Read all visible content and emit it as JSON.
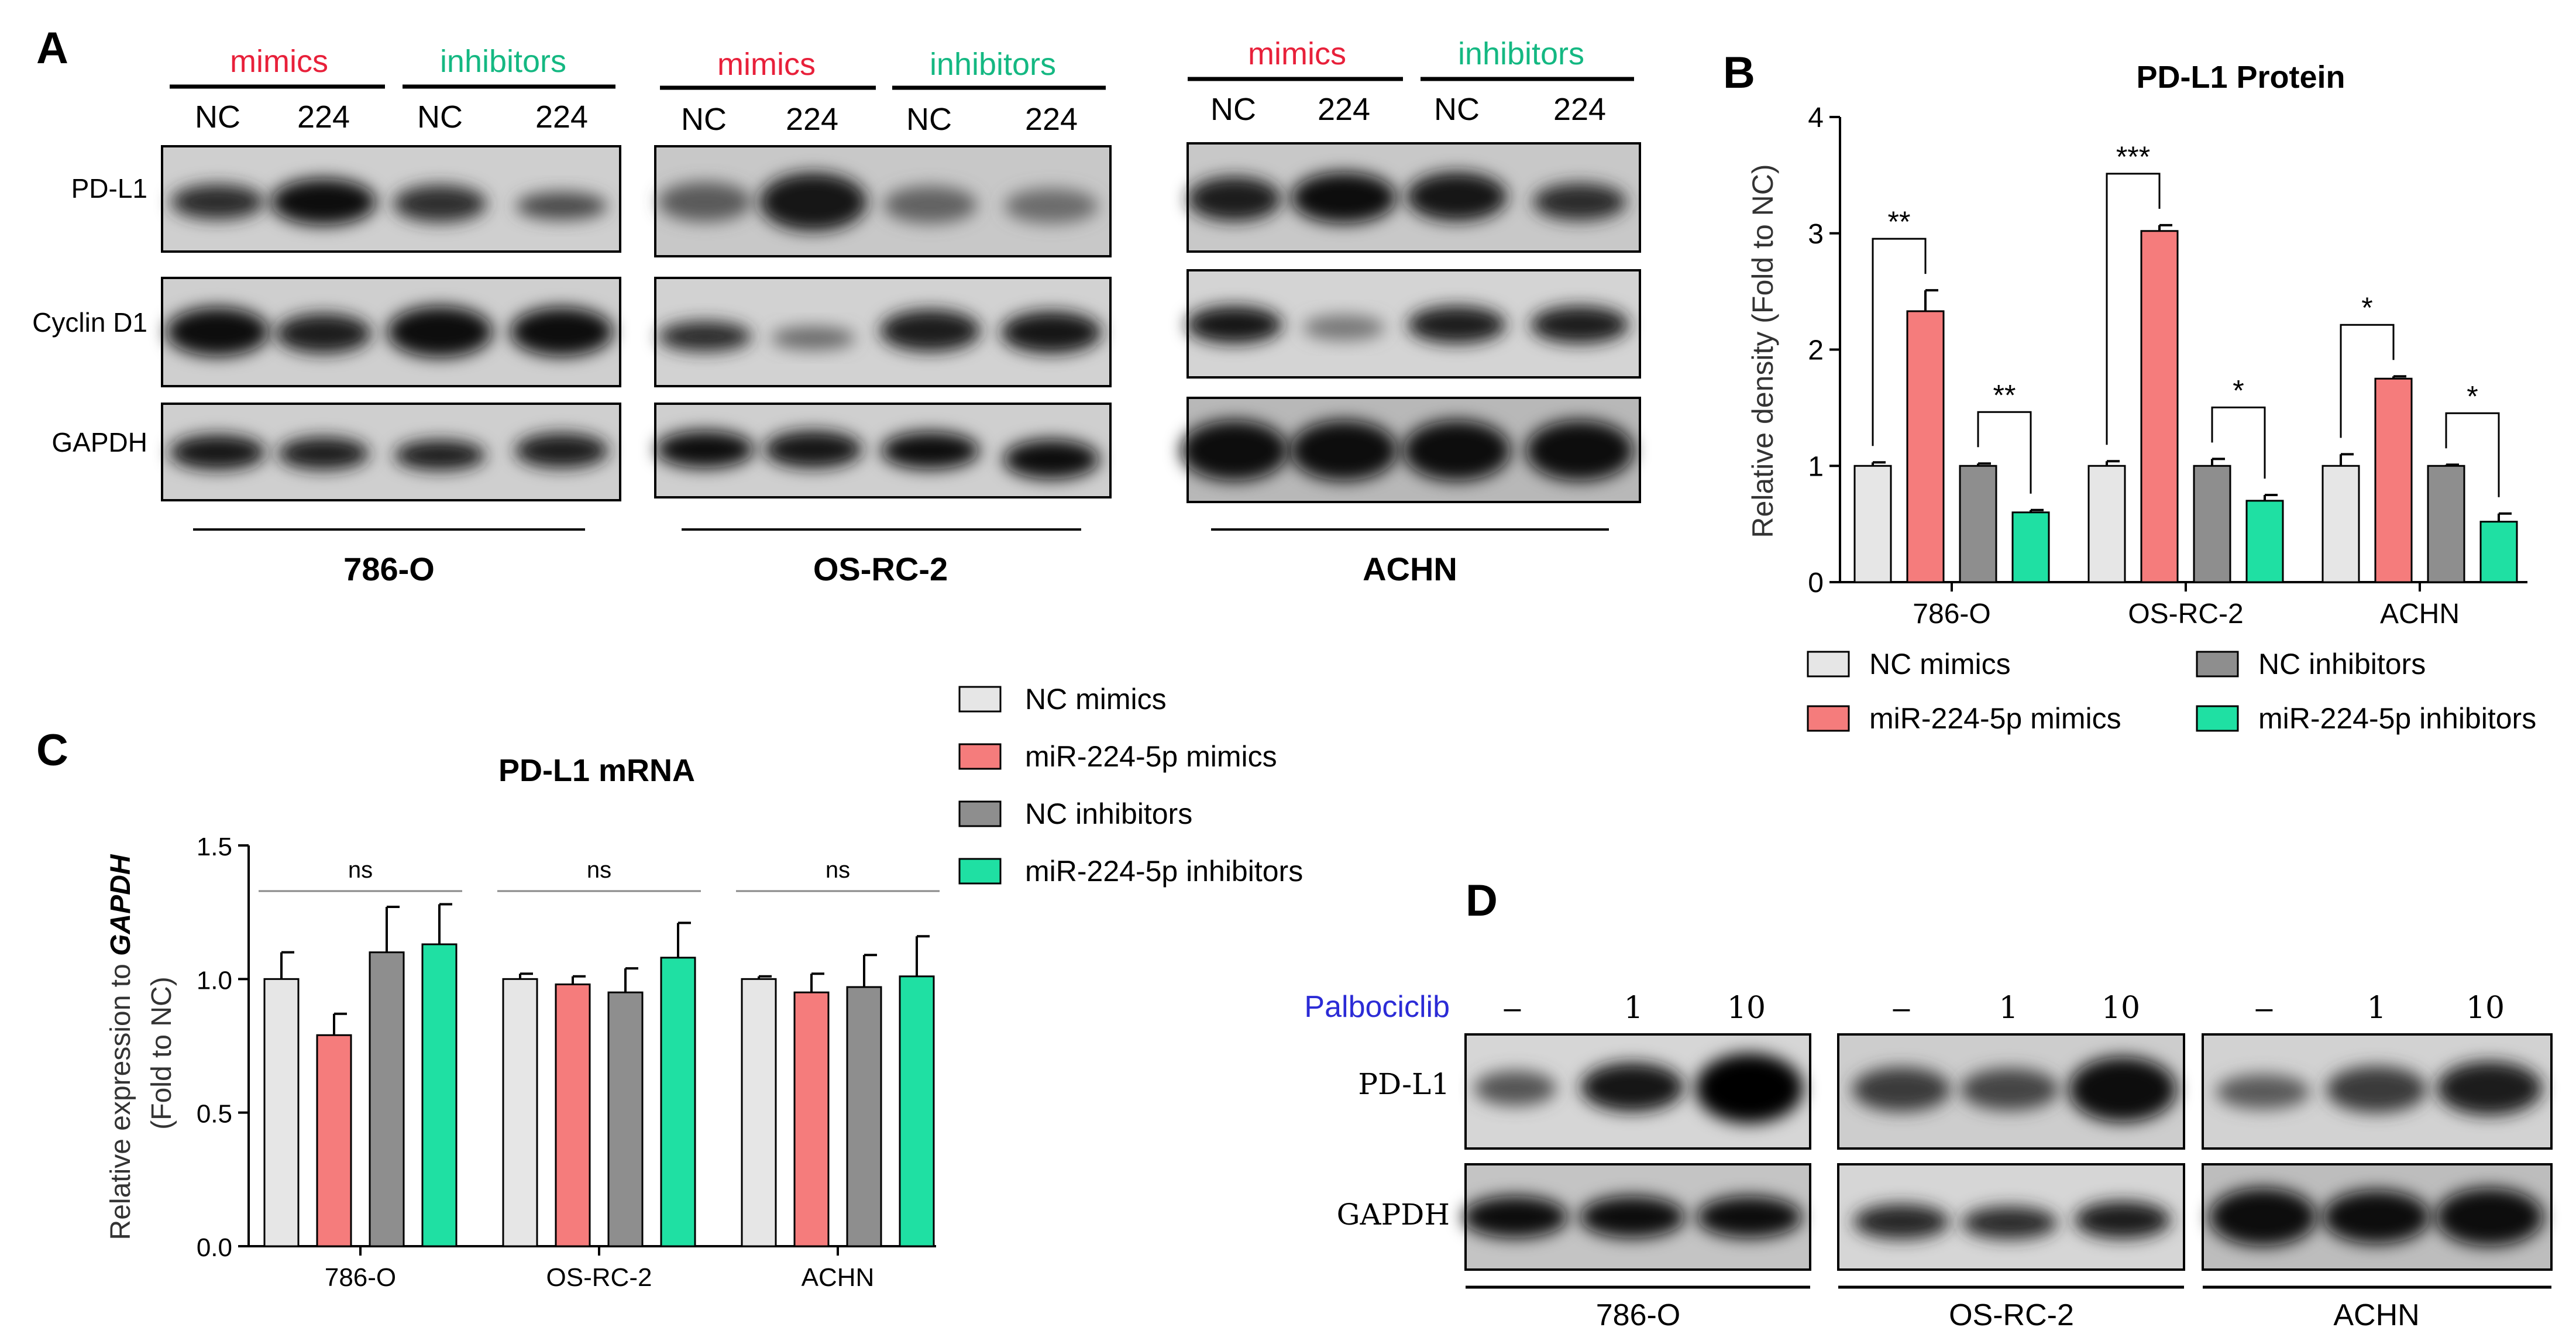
{
  "panel_letters": {
    "a": "A",
    "b": "B",
    "c": "C",
    "d": "D"
  },
  "panel_a": {
    "mimics": "mimics",
    "inhibitors": "inhibitors",
    "lane_nc": "NC",
    "lane_224": "224",
    "rows": [
      "PD-L1",
      "Cyclin D1",
      "GAPDH"
    ],
    "cell_lines": [
      "786-O",
      "OS-RC-2",
      "ACHN"
    ],
    "colors": {
      "mimics": "#e8203a",
      "inhibitors": "#14b882"
    }
  },
  "panel_d": {
    "treatment": "Palbociclib",
    "doses": [
      "–",
      "1",
      "10"
    ],
    "rows": [
      "PD-L1",
      "GAPDH"
    ],
    "cell_lines": [
      "786-O",
      "OS-RC-2",
      "ACHN"
    ],
    "treatment_color": "#2b2bd6"
  },
  "legend_entries": [
    "NC mimics",
    "miR-224-5p mimics",
    "NC inhibitors",
    "miR-224-5p inhibitors"
  ],
  "series_colors": [
    "#e6e6e6",
    "#f57c7c",
    "#8e8e8e",
    "#1fe0a3"
  ],
  "chart_data": [
    {
      "type": "bar",
      "title": "PD-L1 Protein",
      "ylabel": "Relative density (Fold to NC)",
      "categories": [
        "786-O",
        "OS-RC-2",
        "ACHN"
      ],
      "ylim": [
        0,
        4
      ],
      "yticks": [
        "0",
        "1",
        "2",
        "3",
        "4"
      ],
      "series": [
        {
          "name": "NC mimics",
          "values": [
            1.0,
            1.0,
            1.0
          ],
          "errors": [
            0.03,
            0.04,
            0.1
          ]
        },
        {
          "name": "miR-224-5p mimics",
          "values": [
            2.33,
            3.02,
            1.75
          ],
          "errors": [
            0.18,
            0.05,
            0.02
          ]
        },
        {
          "name": "NC inhibitors",
          "values": [
            1.0,
            1.0,
            1.0
          ],
          "errors": [
            0.02,
            0.06,
            0.01
          ]
        },
        {
          "name": "miR-224-5p inhibitors",
          "values": [
            0.6,
            0.7,
            0.52
          ],
          "errors": [
            0.02,
            0.05,
            0.07
          ]
        }
      ],
      "significance": [
        {
          "category": 0,
          "pair": "mimics",
          "label": "**"
        },
        {
          "category": 0,
          "pair": "inhibitors",
          "label": "**"
        },
        {
          "category": 1,
          "pair": "mimics",
          "label": "***"
        },
        {
          "category": 1,
          "pair": "inhibitors",
          "label": "*"
        },
        {
          "category": 2,
          "pair": "mimics",
          "label": "*"
        },
        {
          "category": 2,
          "pair": "inhibitors",
          "label": "*"
        }
      ],
      "legend": "bottom"
    },
    {
      "type": "bar",
      "title": "PD-L1 mRNA",
      "ylabel_prefix": "Relative expression to ",
      "ylabel_gene": "GAPDH",
      "ylabel_sub": "(Fold to NC)",
      "categories": [
        "786-O",
        "OS-RC-2",
        "ACHN"
      ],
      "ylim": [
        0,
        1.5
      ],
      "yticks": [
        "0.0",
        "0.5",
        "1.0",
        "1.5"
      ],
      "series": [
        {
          "name": "NC mimics",
          "values": [
            1.0,
            1.0,
            1.0
          ],
          "errors": [
            0.1,
            0.02,
            0.01
          ]
        },
        {
          "name": "miR-224-5p mimics",
          "values": [
            0.79,
            0.98,
            0.95
          ],
          "errors": [
            0.08,
            0.03,
            0.07
          ]
        },
        {
          "name": "NC inhibitors",
          "values": [
            1.1,
            0.95,
            0.97
          ],
          "errors": [
            0.17,
            0.09,
            0.12
          ]
        },
        {
          "name": "miR-224-5p inhibitors",
          "values": [
            1.13,
            1.08,
            1.01
          ],
          "errors": [
            0.15,
            0.13,
            0.15
          ]
        }
      ],
      "significance": [
        {
          "category": 0,
          "label": "ns"
        },
        {
          "category": 1,
          "label": "ns"
        },
        {
          "category": 2,
          "label": "ns"
        }
      ],
      "legend": "top-right"
    }
  ]
}
